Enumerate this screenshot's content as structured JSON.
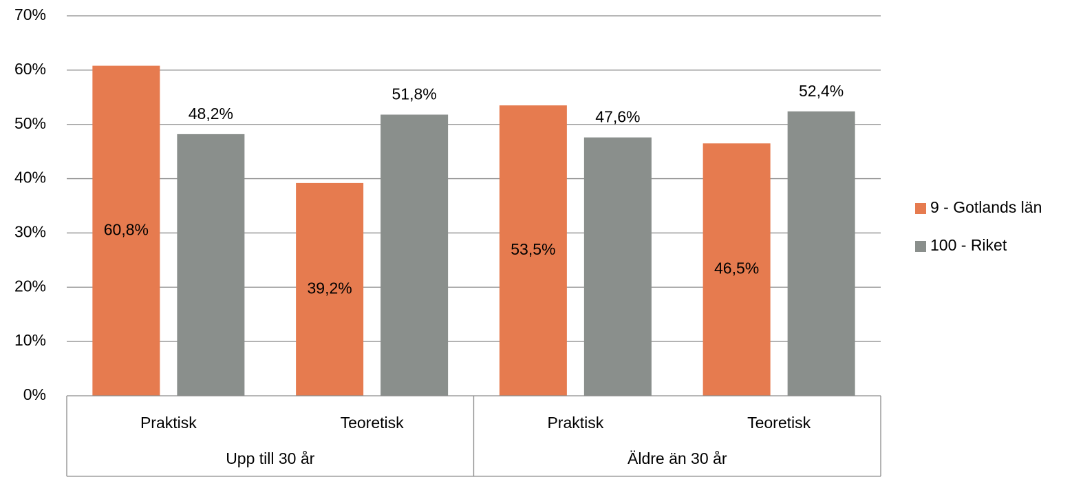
{
  "chart_data": {
    "type": "bar",
    "categories": [
      "Praktisk",
      "Teoretisk",
      "Praktisk",
      "Teoretisk"
    ],
    "groups": [
      "Upp till 30 år",
      "Äldre än 30 år"
    ],
    "series": [
      {
        "name": "9 - Gotlands län",
        "color": "#e67b4f",
        "values": [
          60.8,
          39.2,
          53.5,
          46.5
        ],
        "value_labels": [
          "60,8%",
          "39,2%",
          "53,5%",
          "46,5%"
        ],
        "label_position": "center"
      },
      {
        "name": "100 - Riket",
        "color": "#8a8f8c",
        "values": [
          48.2,
          51.8,
          47.6,
          52.4
        ],
        "value_labels": [
          "48,2%",
          "51,8%",
          "47,6%",
          "52,4%"
        ],
        "label_position": "outside"
      }
    ],
    "ylim": [
      0,
      70
    ],
    "yticks": [
      {
        "value": 0,
        "label": "0%"
      },
      {
        "value": 10,
        "label": "10%"
      },
      {
        "value": 20,
        "label": "20%"
      },
      {
        "value": 30,
        "label": "30%"
      },
      {
        "value": 40,
        "label": "40%"
      },
      {
        "value": 50,
        "label": "50%"
      },
      {
        "value": 60,
        "label": "60%"
      },
      {
        "value": 70,
        "label": "70%"
      }
    ],
    "grid": true,
    "legend": "right"
  }
}
